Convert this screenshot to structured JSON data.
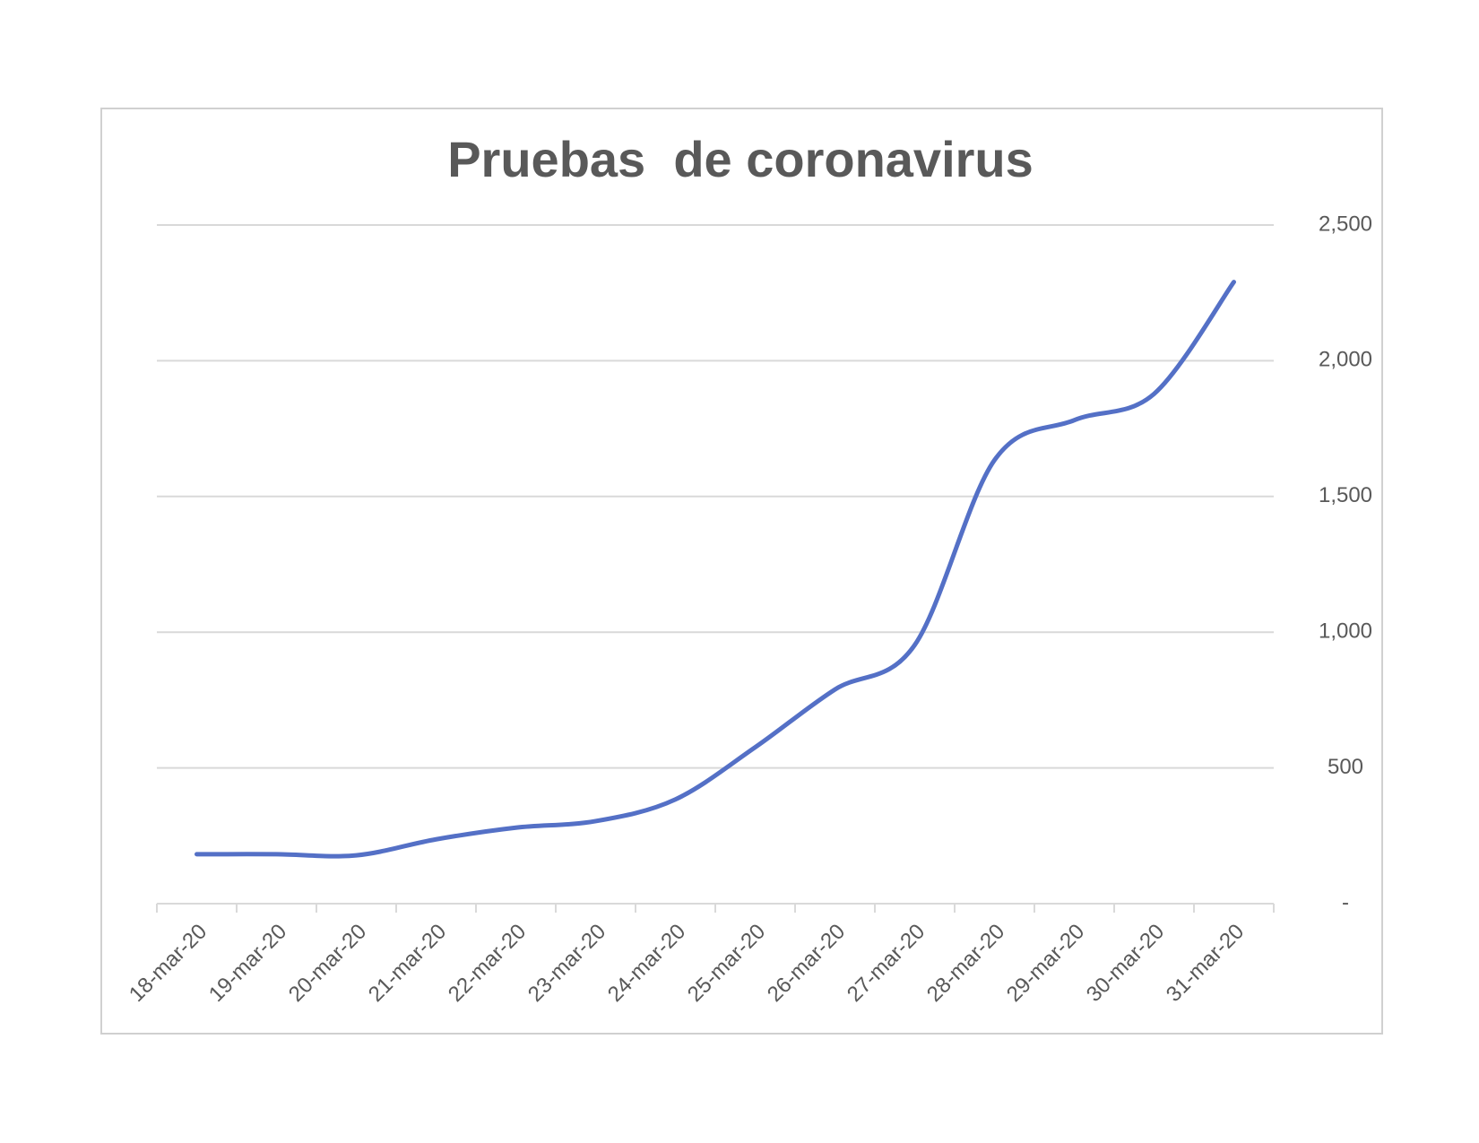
{
  "chart_data": {
    "type": "line",
    "title": "Pruebas  de coronavirus",
    "categories": [
      "18-mar-20",
      "19-mar-20",
      "20-mar-20",
      "21-mar-20",
      "22-mar-20",
      "23-mar-20",
      "24-mar-20",
      "25-mar-20",
      "26-mar-20",
      "27-mar-20",
      "28-mar-20",
      "29-mar-20",
      "30-mar-20",
      "31-mar-20"
    ],
    "values": [
      182,
      182,
      178,
      237,
      280,
      304,
      384,
      576,
      789,
      953,
      1634,
      1781,
      1878,
      2290
    ],
    "color": "#5470c6",
    "ylim": [
      0,
      2500
    ],
    "yticks": [
      {
        "value": 0,
        "label": "-"
      },
      500,
      {
        "value": 1000,
        "label": "1,000"
      },
      {
        "value": 1500,
        "label": "1,500"
      },
      {
        "value": 2000,
        "label": "2,000"
      },
      {
        "value": 2500,
        "label": "2,500"
      }
    ],
    "y_axis_side": "right",
    "grid": true,
    "smooth": true
  }
}
